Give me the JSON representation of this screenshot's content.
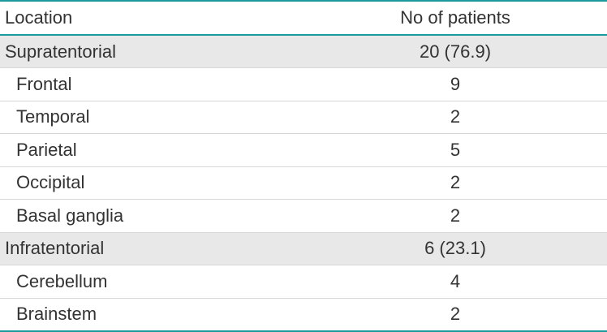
{
  "table": {
    "headers": {
      "location": "Location",
      "patients": "No of patients"
    },
    "rows": [
      {
        "location": "Supratentorial",
        "patients": "20 (76.9)",
        "level": "group"
      },
      {
        "location": "Frontal",
        "patients": "9",
        "level": "sub"
      },
      {
        "location": "Temporal",
        "patients": "2",
        "level": "sub"
      },
      {
        "location": "Parietal",
        "patients": "5",
        "level": "sub"
      },
      {
        "location": "Occipital",
        "patients": "2",
        "level": "sub"
      },
      {
        "location": "Basal ganglia",
        "patients": "2",
        "level": "sub"
      },
      {
        "location": "Infratentorial",
        "patients": "6 (23.1)",
        "level": "group"
      },
      {
        "location": "Cerebellum",
        "patients": "4",
        "level": "sub"
      },
      {
        "location": "Brainstem",
        "patients": "2",
        "level": "sub"
      }
    ],
    "colors": {
      "rule": "#1a9a9a",
      "group_row_bg": "#e8e8e8",
      "text": "#333333"
    }
  }
}
